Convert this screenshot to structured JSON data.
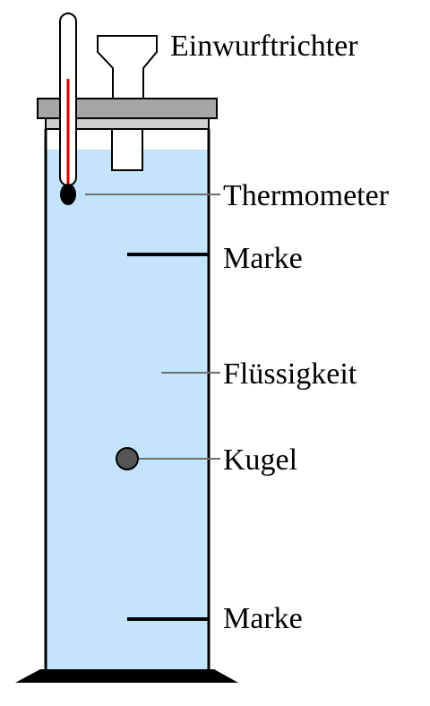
{
  "labels": {
    "funnel": "Einwurftrichter",
    "thermometer": "Thermometer",
    "mark_top": "Marke",
    "liquid": "Flüssigkeit",
    "ball": "Kugel",
    "mark_bottom": "Marke"
  },
  "colors": {
    "liquid": "#c4e4fb",
    "lid": "#a6a6a6",
    "ball": "#555555",
    "thermometer_column": "#dd0000",
    "leader_line": "#707070",
    "outline": "#000000"
  }
}
